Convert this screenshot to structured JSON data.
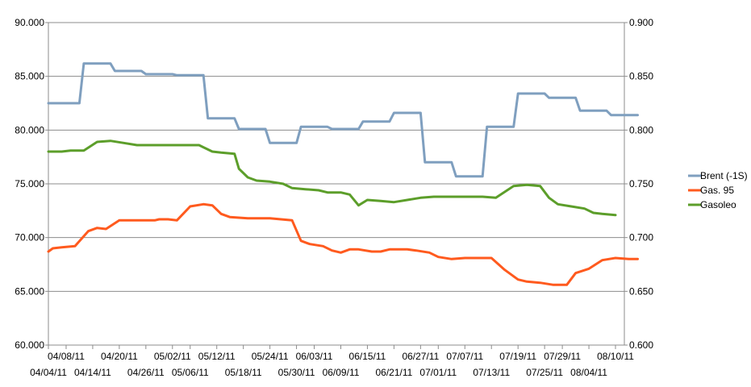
{
  "chart_data": {
    "type": "line",
    "title": "",
    "xlabel": "",
    "ylabel": "",
    "y_left": {
      "min": 60,
      "max": 90,
      "ticks": [
        "60.000",
        "65.000",
        "70.000",
        "75.000",
        "80.000",
        "85.000",
        "90.000"
      ]
    },
    "y_right": {
      "min": 0.6,
      "max": 0.9,
      "ticks": [
        "0.600",
        "0.650",
        "0.700",
        "0.750",
        "0.800",
        "0.850",
        "0.900"
      ]
    },
    "x_range": [
      "2011-04-04",
      "2011-08-12"
    ],
    "x_ticks_lower": [
      "04/04/11",
      "04/14/11",
      "04/26/11",
      "05/06/11",
      "05/18/11",
      "05/30/11",
      "06/09/11",
      "06/21/11",
      "07/01/11",
      "07/13/11",
      "07/25/11",
      "08/04/11"
    ],
    "x_ticks_upper": [
      "04/08/11",
      "04/20/11",
      "05/02/11",
      "05/12/11",
      "05/24/11",
      "06/03/11",
      "06/15/11",
      "06/27/11",
      "07/07/11",
      "07/19/11",
      "07/29/11",
      "08/10/11"
    ],
    "grid": "horizontal",
    "legend_position": "right",
    "series": [
      {
        "name": "Brent (-1S)",
        "axis": "left",
        "color": "#7f9fbf",
        "points": [
          [
            "2011-04-04",
            82.5
          ],
          [
            "2011-04-11",
            82.5
          ],
          [
            "2011-04-12",
            86.2
          ],
          [
            "2011-04-18",
            86.2
          ],
          [
            "2011-04-19",
            85.5
          ],
          [
            "2011-04-25",
            85.5
          ],
          [
            "2011-04-26",
            85.2
          ],
          [
            "2011-05-02",
            85.2
          ],
          [
            "2011-05-03",
            85.1
          ],
          [
            "2011-05-09",
            85.1
          ],
          [
            "2011-05-10",
            81.1
          ],
          [
            "2011-05-16",
            81.1
          ],
          [
            "2011-05-17",
            80.1
          ],
          [
            "2011-05-23",
            80.1
          ],
          [
            "2011-05-24",
            78.8
          ],
          [
            "2011-05-30",
            78.8
          ],
          [
            "2011-05-31",
            80.3
          ],
          [
            "2011-06-06",
            80.3
          ],
          [
            "2011-06-07",
            80.1
          ],
          [
            "2011-06-13",
            80.1
          ],
          [
            "2011-06-14",
            80.8
          ],
          [
            "2011-06-20",
            80.8
          ],
          [
            "2011-06-21",
            81.6
          ],
          [
            "2011-06-27",
            81.6
          ],
          [
            "2011-06-28",
            77.0
          ],
          [
            "2011-07-04",
            77.0
          ],
          [
            "2011-07-05",
            75.7
          ],
          [
            "2011-07-11",
            75.7
          ],
          [
            "2011-07-12",
            80.3
          ],
          [
            "2011-07-18",
            80.3
          ],
          [
            "2011-07-19",
            83.4
          ],
          [
            "2011-07-25",
            83.4
          ],
          [
            "2011-07-26",
            83.0
          ],
          [
            "2011-08-01",
            83.0
          ],
          [
            "2011-08-02",
            81.8
          ],
          [
            "2011-08-08",
            81.8
          ],
          [
            "2011-08-09",
            81.4
          ],
          [
            "2011-08-15",
            81.4
          ]
        ]
      },
      {
        "name": "Gas. 95",
        "axis": "right",
        "color": "#ff5a1e",
        "points": [
          [
            "2011-04-04",
            0.687
          ],
          [
            "2011-04-05",
            0.69
          ],
          [
            "2011-04-07",
            0.691
          ],
          [
            "2011-04-10",
            0.692
          ],
          [
            "2011-04-13",
            0.706
          ],
          [
            "2011-04-15",
            0.709
          ],
          [
            "2011-04-17",
            0.708
          ],
          [
            "2011-04-20",
            0.716
          ],
          [
            "2011-04-24",
            0.716
          ],
          [
            "2011-04-28",
            0.716
          ],
          [
            "2011-04-29",
            0.717
          ],
          [
            "2011-05-01",
            0.717
          ],
          [
            "2011-05-03",
            0.716
          ],
          [
            "2011-05-06",
            0.729
          ],
          [
            "2011-05-09",
            0.731
          ],
          [
            "2011-05-11",
            0.73
          ],
          [
            "2011-05-13",
            0.722
          ],
          [
            "2011-05-15",
            0.719
          ],
          [
            "2011-05-19",
            0.718
          ],
          [
            "2011-05-24",
            0.718
          ],
          [
            "2011-05-29",
            0.716
          ],
          [
            "2011-05-31",
            0.697
          ],
          [
            "2011-06-02",
            0.694
          ],
          [
            "2011-06-05",
            0.692
          ],
          [
            "2011-06-07",
            0.688
          ],
          [
            "2011-06-09",
            0.686
          ],
          [
            "2011-06-11",
            0.689
          ],
          [
            "2011-06-13",
            0.689
          ],
          [
            "2011-06-16",
            0.687
          ],
          [
            "2011-06-18",
            0.687
          ],
          [
            "2011-06-20",
            0.689
          ],
          [
            "2011-06-24",
            0.689
          ],
          [
            "2011-06-26",
            0.688
          ],
          [
            "2011-06-29",
            0.686
          ],
          [
            "2011-07-01",
            0.682
          ],
          [
            "2011-07-04",
            0.68
          ],
          [
            "2011-07-07",
            0.681
          ],
          [
            "2011-07-13",
            0.681
          ],
          [
            "2011-07-16",
            0.67
          ],
          [
            "2011-07-19",
            0.661
          ],
          [
            "2011-07-21",
            0.659
          ],
          [
            "2011-07-24",
            0.658
          ],
          [
            "2011-07-27",
            0.656
          ],
          [
            "2011-07-30",
            0.656
          ],
          [
            "2011-08-01",
            0.667
          ],
          [
            "2011-08-04",
            0.671
          ],
          [
            "2011-08-07",
            0.679
          ],
          [
            "2011-08-10",
            0.681
          ],
          [
            "2011-08-13",
            0.68
          ],
          [
            "2011-08-15",
            0.68
          ]
        ]
      },
      {
        "name": "Gasoleo",
        "axis": "right",
        "color": "#5c9e2a",
        "points": [
          [
            "2011-04-04",
            0.78
          ],
          [
            "2011-04-07",
            0.78
          ],
          [
            "2011-04-09",
            0.781
          ],
          [
            "2011-04-12",
            0.781
          ],
          [
            "2011-04-15",
            0.789
          ],
          [
            "2011-04-18",
            0.79
          ],
          [
            "2011-04-21",
            0.788
          ],
          [
            "2011-04-24",
            0.786
          ],
          [
            "2011-04-28",
            0.786
          ],
          [
            "2011-05-02",
            0.786
          ],
          [
            "2011-05-06",
            0.786
          ],
          [
            "2011-05-08",
            0.786
          ],
          [
            "2011-05-11",
            0.78
          ],
          [
            "2011-05-13",
            0.779
          ],
          [
            "2011-05-16",
            0.778
          ],
          [
            "2011-05-17",
            0.764
          ],
          [
            "2011-05-19",
            0.756
          ],
          [
            "2011-05-21",
            0.753
          ],
          [
            "2011-05-24",
            0.752
          ],
          [
            "2011-05-27",
            0.75
          ],
          [
            "2011-05-29",
            0.746
          ],
          [
            "2011-06-01",
            0.745
          ],
          [
            "2011-06-04",
            0.744
          ],
          [
            "2011-06-06",
            0.742
          ],
          [
            "2011-06-09",
            0.742
          ],
          [
            "2011-06-11",
            0.74
          ],
          [
            "2011-06-13",
            0.73
          ],
          [
            "2011-06-15",
            0.735
          ],
          [
            "2011-06-18",
            0.734
          ],
          [
            "2011-06-21",
            0.733
          ],
          [
            "2011-06-24",
            0.735
          ],
          [
            "2011-06-27",
            0.737
          ],
          [
            "2011-06-30",
            0.738
          ],
          [
            "2011-07-03",
            0.738
          ],
          [
            "2011-07-06",
            0.738
          ],
          [
            "2011-07-09",
            0.738
          ],
          [
            "2011-07-11",
            0.738
          ],
          [
            "2011-07-14",
            0.737
          ],
          [
            "2011-07-18",
            0.748
          ],
          [
            "2011-07-21",
            0.749
          ],
          [
            "2011-07-24",
            0.748
          ],
          [
            "2011-07-26",
            0.737
          ],
          [
            "2011-07-28",
            0.731
          ],
          [
            "2011-07-31",
            0.729
          ],
          [
            "2011-08-03",
            0.727
          ],
          [
            "2011-08-05",
            0.723
          ],
          [
            "2011-08-07",
            0.722
          ],
          [
            "2011-08-10",
            0.721
          ]
        ]
      }
    ]
  }
}
